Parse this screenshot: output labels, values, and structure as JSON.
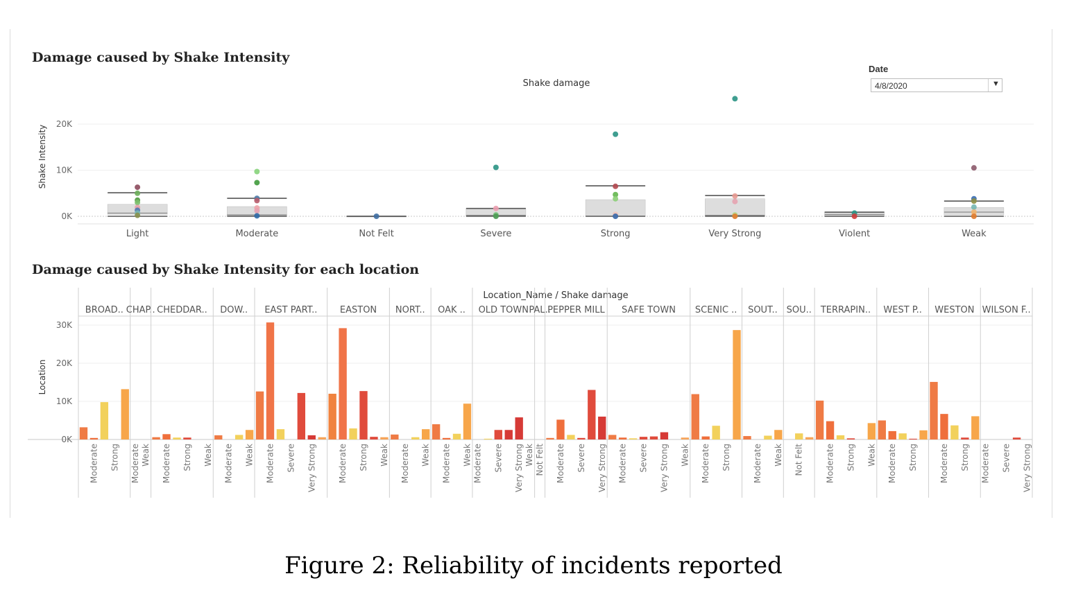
{
  "figure_caption": "Figure 2: Reliability of incidents reported",
  "date_filter": {
    "label": "Date",
    "value": "4/8/2020"
  },
  "chart_data": [
    {
      "type": "box-scatter",
      "section_title": "Damage caused by Shake Intensity",
      "title": "Shake damage",
      "xlabel": "",
      "ylabel": "Shake Intensity",
      "ylim": [
        0,
        27000
      ],
      "y_ticks": [
        0,
        10000,
        20000
      ],
      "y_tick_labels": [
        "0K",
        "10K",
        "20K"
      ],
      "grid": true,
      "categories": [
        "Light",
        "Moderate",
        "Not Felt",
        "Severe",
        "Strong",
        "Very Strong",
        "Violent",
        "Weak"
      ],
      "boxes": [
        {
          "category": "Light",
          "q1": 400,
          "median": 700,
          "q3": 2600,
          "whisker_low": 0,
          "whisker_high": 5100
        },
        {
          "category": "Moderate",
          "q1": 150,
          "median": 300,
          "q3": 2100,
          "whisker_low": 0,
          "whisker_high": 3900
        },
        {
          "category": "Not Felt",
          "q1": 0,
          "median": 0,
          "q3": 0,
          "whisker_low": 0,
          "whisker_high": 0
        },
        {
          "category": "Severe",
          "q1": 0,
          "median": 200,
          "q3": 1700,
          "whisker_low": 0,
          "whisker_high": 1700
        },
        {
          "category": "Strong",
          "q1": 0,
          "median": 0,
          "q3": 3600,
          "whisker_low": 0,
          "whisker_high": 6600
        },
        {
          "category": "Very Strong",
          "q1": 0,
          "median": 200,
          "q3": 3800,
          "whisker_low": 0,
          "whisker_high": 4500
        },
        {
          "category": "Violent",
          "q1": 0,
          "median": 400,
          "q3": 900,
          "whisker_low": 0,
          "whisker_high": 900
        },
        {
          "category": "Weak",
          "q1": 300,
          "median": 900,
          "q3": 1900,
          "whisker_low": 0,
          "whisker_high": 3300
        }
      ],
      "points": [
        {
          "category": "Light",
          "y": 6300,
          "color": "#8c4a5c"
        },
        {
          "category": "Light",
          "y": 5000,
          "color": "#6cae5a"
        },
        {
          "category": "Light",
          "y": 3500,
          "color": "#4f9a3e"
        },
        {
          "category": "Light",
          "y": 3000,
          "color": "#7bbf6a"
        },
        {
          "category": "Light",
          "y": 1900,
          "color": "#e8a0a8"
        },
        {
          "category": "Light",
          "y": 1300,
          "color": "#4b79b0"
        },
        {
          "category": "Light",
          "y": 700,
          "color": "#76b7b2"
        },
        {
          "category": "Light",
          "y": 200,
          "color": "#8a8f4b"
        },
        {
          "category": "Moderate",
          "y": 9700,
          "color": "#86d37a"
        },
        {
          "category": "Moderate",
          "y": 7300,
          "color": "#3f9a3c"
        },
        {
          "category": "Moderate",
          "y": 3900,
          "color": "#4a79a5"
        },
        {
          "category": "Moderate",
          "y": 3400,
          "color": "#b85b6a"
        },
        {
          "category": "Moderate",
          "y": 1800,
          "color": "#f0a3a8"
        },
        {
          "category": "Moderate",
          "y": 1200,
          "color": "#e6a0b0"
        },
        {
          "category": "Moderate",
          "y": 100,
          "color": "#2f6aa8"
        },
        {
          "category": "Not Felt",
          "y": 0,
          "color": "#3e6ea3"
        },
        {
          "category": "Severe",
          "y": 10600,
          "color": "#2a9384"
        },
        {
          "category": "Severe",
          "y": 1700,
          "color": "#ec9fb0"
        },
        {
          "category": "Severe",
          "y": 300,
          "color": "#7bc27e"
        },
        {
          "category": "Severe",
          "y": 0,
          "color": "#4c9a54"
        },
        {
          "category": "Strong",
          "y": 17800,
          "color": "#2a9384"
        },
        {
          "category": "Strong",
          "y": 6500,
          "color": "#b3484f"
        },
        {
          "category": "Strong",
          "y": 4700,
          "color": "#63b64e"
        },
        {
          "category": "Strong",
          "y": 3800,
          "color": "#8ccf77"
        },
        {
          "category": "Strong",
          "y": 400,
          "color": "#f2c3b8"
        },
        {
          "category": "Strong",
          "y": 0,
          "color": "#3567a8"
        },
        {
          "category": "Very Strong",
          "y": 25500,
          "color": "#2a9384"
        },
        {
          "category": "Very Strong",
          "y": 4400,
          "color": "#e89a92"
        },
        {
          "category": "Very Strong",
          "y": 3200,
          "color": "#e6a3b0"
        },
        {
          "category": "Very Strong",
          "y": 300,
          "color": "#b4d98c"
        },
        {
          "category": "Very Strong",
          "y": 0,
          "color": "#e07b2c"
        },
        {
          "category": "Violent",
          "y": 700,
          "color": "#2a9384"
        },
        {
          "category": "Violent",
          "y": 0,
          "color": "#cf3c3c"
        },
        {
          "category": "Weak",
          "y": 10500,
          "color": "#8c5a6b"
        },
        {
          "category": "Weak",
          "y": 3800,
          "color": "#3a6db0"
        },
        {
          "category": "Weak",
          "y": 3300,
          "color": "#8f8f44"
        },
        {
          "category": "Weak",
          "y": 2000,
          "color": "#76b7b2"
        },
        {
          "category": "Weak",
          "y": 900,
          "color": "#f2b36b"
        },
        {
          "category": "Weak",
          "y": 0,
          "color": "#e07b2c"
        }
      ]
    },
    {
      "type": "bar",
      "section_title": "Damage caused by Shake Intensity for each location",
      "title": "Location_Name / Shake damage",
      "xlabel": "",
      "ylabel": "Location",
      "ylim": [
        0,
        30700
      ],
      "y_ticks": [
        0,
        10000,
        20000,
        30000
      ],
      "y_tick_labels": [
        "0K",
        "10K",
        "20K",
        "30K"
      ],
      "grid": true,
      "groups": [
        {
          "name": "BROAD..",
          "bars": [
            {
              "label": "",
              "value": 3200,
              "color": "#ef7b45"
            },
            {
              "label": "Moderate",
              "value": 400,
              "color": "#ef6f3c"
            },
            {
              "label": "",
              "value": 9800,
              "color": "#f2d15c"
            },
            {
              "label": "Strong",
              "value": 0,
              "color": "#f6a45a"
            },
            {
              "label": "",
              "value": 13200,
              "color": "#f7a64a"
            }
          ]
        },
        {
          "name": "CHAP..",
          "bars": [
            {
              "label": "Moderate",
              "value": 0,
              "color": "#ef7b45"
            },
            {
              "label": "Weak",
              "value": 0,
              "color": "#f6a45a"
            }
          ]
        },
        {
          "name": "CHEDDAR..",
          "bars": [
            {
              "label": "",
              "value": 600,
              "color": "#ef7b45"
            },
            {
              "label": "Moderate",
              "value": 1400,
              "color": "#ef6f3c"
            },
            {
              "label": "",
              "value": 500,
              "color": "#f2d15c"
            },
            {
              "label": "Strong",
              "value": 500,
              "color": "#e04b3c"
            },
            {
              "label": "",
              "value": 0,
              "color": "#e2b05a"
            },
            {
              "label": "Weak",
              "value": 0,
              "color": "#f6a45a"
            }
          ]
        },
        {
          "name": "DOW..",
          "bars": [
            {
              "label": "",
              "value": 1100,
              "color": "#ef7b45"
            },
            {
              "label": "Moderate",
              "value": 0,
              "color": "#ef6f3c"
            },
            {
              "label": "",
              "value": 1200,
              "color": "#f2d15c"
            },
            {
              "label": "Weak",
              "value": 2500,
              "color": "#f7a64a"
            }
          ]
        },
        {
          "name": "EAST PART..",
          "bars": [
            {
              "label": "",
              "value": 12600,
              "color": "#ef7b45"
            },
            {
              "label": "Moderate",
              "value": 30700,
              "color": "#f07448"
            },
            {
              "label": "",
              "value": 2700,
              "color": "#f2d15c"
            },
            {
              "label": "Severe",
              "value": 0,
              "color": "#e04b3c"
            },
            {
              "label": "",
              "value": 12200,
              "color": "#e04b3c"
            },
            {
              "label": "Very Strong",
              "value": 1100,
              "color": "#d63a36"
            },
            {
              "label": "",
              "value": 600,
              "color": "#f6a45a"
            }
          ]
        },
        {
          "name": "EASTON",
          "bars": [
            {
              "label": "",
              "value": 12000,
              "color": "#f0833f"
            },
            {
              "label": "Moderate",
              "value": 29200,
              "color": "#f07448"
            },
            {
              "label": "",
              "value": 2900,
              "color": "#f2d15c"
            },
            {
              "label": "Strong",
              "value": 12700,
              "color": "#e04b3c"
            },
            {
              "label": "",
              "value": 700,
              "color": "#e04b3c"
            },
            {
              "label": "Weak",
              "value": 600,
              "color": "#f6a45a"
            }
          ]
        },
        {
          "name": "NORT..",
          "bars": [
            {
              "label": "",
              "value": 1300,
              "color": "#ef7b45"
            },
            {
              "label": "Moderate",
              "value": 0,
              "color": "#ef6f3c"
            },
            {
              "label": "",
              "value": 600,
              "color": "#f2d15c"
            },
            {
              "label": "Weak",
              "value": 2700,
              "color": "#f7a64a"
            }
          ]
        },
        {
          "name": "OAK ..",
          "bars": [
            {
              "label": "",
              "value": 4000,
              "color": "#ef7b45"
            },
            {
              "label": "Moderate",
              "value": 400,
              "color": "#ef6f3c"
            },
            {
              "label": "",
              "value": 1500,
              "color": "#f2d15c"
            },
            {
              "label": "Weak",
              "value": 9400,
              "color": "#f7a64a"
            }
          ]
        },
        {
          "name": "OLD TOWN",
          "bars": [
            {
              "label": "Moderate",
              "value": 0,
              "color": "#ef6f3c"
            },
            {
              "label": "",
              "value": 200,
              "color": "#f2d15c"
            },
            {
              "label": "Severe",
              "value": 2500,
              "color": "#e04b3c"
            },
            {
              "label": "",
              "value": 2500,
              "color": "#d63a36"
            },
            {
              "label": "Very Strong",
              "value": 5800,
              "color": "#d63a36"
            },
            {
              "label": "Weak",
              "value": 0,
              "color": "#f6a45a"
            }
          ]
        },
        {
          "name": "PAL..",
          "bars": [
            {
              "label": "Not Felt",
              "value": 0,
              "color": "#f2d15c"
            }
          ]
        },
        {
          "name": "PEPPER MILL",
          "bars": [
            {
              "label": "",
              "value": 400,
              "color": "#ef7b45"
            },
            {
              "label": "Moderate",
              "value": 5200,
              "color": "#ef6f3c"
            },
            {
              "label": "",
              "value": 1200,
              "color": "#f2d15c"
            },
            {
              "label": "Severe",
              "value": 400,
              "color": "#e04b3c"
            },
            {
              "label": "",
              "value": 13000,
              "color": "#e04b3c"
            },
            {
              "label": "Very Strong",
              "value": 6000,
              "color": "#d63a36"
            }
          ]
        },
        {
          "name": "SAFE TOWN",
          "bars": [
            {
              "label": "",
              "value": 1200,
              "color": "#ef7b45"
            },
            {
              "label": "Moderate",
              "value": 500,
              "color": "#ef6f3c"
            },
            {
              "label": "",
              "value": 300,
              "color": "#f2d15c"
            },
            {
              "label": "Severe",
              "value": 700,
              "color": "#e04b3c"
            },
            {
              "label": "",
              "value": 800,
              "color": "#e04b3c"
            },
            {
              "label": "Very Strong",
              "value": 1900,
              "color": "#d63a36"
            },
            {
              "label": "",
              "value": 0,
              "color": "#e2b05a"
            },
            {
              "label": "Weak",
              "value": 500,
              "color": "#f6a45a"
            }
          ]
        },
        {
          "name": "SCENIC ..",
          "bars": [
            {
              "label": "",
              "value": 11900,
              "color": "#ef7b45"
            },
            {
              "label": "Moderate",
              "value": 800,
              "color": "#ef6f3c"
            },
            {
              "label": "",
              "value": 3600,
              "color": "#f2d15c"
            },
            {
              "label": "Strong",
              "value": 0,
              "color": "#e04b3c"
            },
            {
              "label": "",
              "value": 28700,
              "color": "#f7a64a"
            }
          ]
        },
        {
          "name": "SOUT..",
          "bars": [
            {
              "label": "",
              "value": 900,
              "color": "#ef7b45"
            },
            {
              "label": "Moderate",
              "value": 0,
              "color": "#ef6f3c"
            },
            {
              "label": "",
              "value": 1000,
              "color": "#f2d15c"
            },
            {
              "label": "Weak",
              "value": 2500,
              "color": "#f7a64a"
            }
          ]
        },
        {
          "name": "SOU..",
          "bars": [
            {
              "label": "",
              "value": 0,
              "color": "#ef7b45"
            },
            {
              "label": "Not Felt",
              "value": 1600,
              "color": "#f2d15c"
            },
            {
              "label": "",
              "value": 600,
              "color": "#f6a45a"
            }
          ]
        },
        {
          "name": "TERRAPIN..",
          "bars": [
            {
              "label": "",
              "value": 10200,
              "color": "#ef7b45"
            },
            {
              "label": "Moderate",
              "value": 4800,
              "color": "#ef6f3c"
            },
            {
              "label": "",
              "value": 1100,
              "color": "#f2d15c"
            },
            {
              "label": "Strong",
              "value": 300,
              "color": "#e04b3c"
            },
            {
              "label": "",
              "value": 0,
              "color": "#e2b05a"
            },
            {
              "label": "Weak",
              "value": 4300,
              "color": "#f7a64a"
            }
          ]
        },
        {
          "name": "WEST P..",
          "bars": [
            {
              "label": "",
              "value": 5000,
              "color": "#ef7b45"
            },
            {
              "label": "Moderate",
              "value": 2200,
              "color": "#ef6f3c"
            },
            {
              "label": "",
              "value": 1600,
              "color": "#f2d15c"
            },
            {
              "label": "Strong",
              "value": 200,
              "color": "#e04b3c"
            },
            {
              "label": "",
              "value": 2400,
              "color": "#f7a64a"
            }
          ]
        },
        {
          "name": "WESTON",
          "bars": [
            {
              "label": "",
              "value": 15100,
              "color": "#ef7b45"
            },
            {
              "label": "Moderate",
              "value": 6700,
              "color": "#ef6f3c"
            },
            {
              "label": "",
              "value": 3700,
              "color": "#f2d15c"
            },
            {
              "label": "Strong",
              "value": 500,
              "color": "#e04b3c"
            },
            {
              "label": "",
              "value": 6100,
              "color": "#f7a64a"
            }
          ]
        },
        {
          "name": "WILSON F..",
          "bars": [
            {
              "label": "Moderate",
              "value": 0,
              "color": "#ef6f3c"
            },
            {
              "label": "",
              "value": 0,
              "color": "#f2d15c"
            },
            {
              "label": "Severe",
              "value": 0,
              "color": "#e04b3c"
            },
            {
              "label": "",
              "value": 500,
              "color": "#e04b3c"
            },
            {
              "label": "Very Strong",
              "value": 0,
              "color": "#d63a36"
            }
          ]
        }
      ]
    }
  ]
}
